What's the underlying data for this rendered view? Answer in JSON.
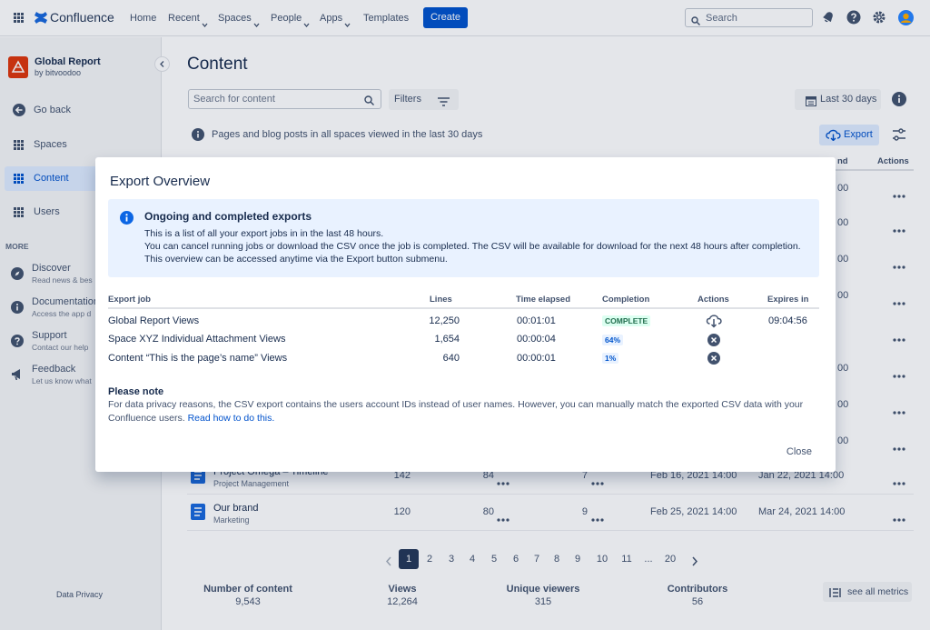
{
  "nav": {
    "brand": "Confluence",
    "items": [
      "Home",
      "Recent",
      "Spaces",
      "People",
      "Apps",
      "Templates"
    ],
    "create": "Create",
    "search": "Search"
  },
  "sidebar": {
    "app_title": "Global Report",
    "app_vendor": "by bitvoodoo",
    "links": [
      "Go back",
      "Spaces",
      "Content",
      "Users"
    ],
    "more_heading": "MORE",
    "more": [
      {
        "title": "Discover",
        "subtitle": "Read news & bes"
      },
      {
        "title": "Documentation",
        "subtitle": "Access the app d"
      },
      {
        "title": "Support",
        "subtitle": "Contact our help"
      },
      {
        "title": "Feedback",
        "subtitle": "Let us know what"
      }
    ],
    "footer": "Data Privacy"
  },
  "content": {
    "title": "Content",
    "search_placeholder": "Search for content",
    "filters": "Filters",
    "date_range": "Last 30 days",
    "info": "Pages and blog posts in all spaces viewed in the last 30 days",
    "export": "Export",
    "header_tail": [
      "nd",
      "Actions"
    ],
    "peek_values": [
      "00",
      "00",
      "00",
      "00",
      "00",
      "00",
      "00"
    ],
    "rows": [
      {
        "title": "Project Omega – Timeline",
        "space": "Project Management",
        "views": "142",
        "unique": "84",
        "contributors": "7",
        "first": "Feb 16, 2021 14:00",
        "last": "Jan 22, 2021 14:00"
      },
      {
        "title": "Our brand",
        "space": "Marketing",
        "views": "120",
        "unique": "80",
        "contributors": "9",
        "first": "Feb 25, 2021 14:00",
        "last": "Mar 24, 2021 14:00"
      }
    ],
    "pagination": [
      "1",
      "2",
      "3",
      "4",
      "5",
      "6",
      "7",
      "8",
      "9",
      "10",
      "11",
      "...",
      "20"
    ],
    "metrics": [
      {
        "label": "Number of content",
        "value": "9,543"
      },
      {
        "label": "Views",
        "value": "12,264"
      },
      {
        "label": "Unique viewers",
        "value": "315"
      },
      {
        "label": "Contributors",
        "value": "56"
      }
    ],
    "see_all": "see all metrics"
  },
  "modal": {
    "title": "Export Overview",
    "notice": {
      "title": "Ongoing and completed exports",
      "lines": [
        "This is a list of all your export jobs in in the last 48 hours.",
        "You can cancel running jobs or download the CSV once the job is completed. The CSV will be available for download for the next 48 hours after completion.",
        "This overview can be accessed anytime via the Export button submenu."
      ]
    },
    "columns": [
      "Export job",
      "Lines",
      "Time elapsed",
      "Completion",
      "Actions",
      "Expires in"
    ],
    "jobs": [
      {
        "name": "Global Report Views",
        "lines": "12,250",
        "elapsed": "00:01:01",
        "completion": "COMPLETE",
        "expires": "09:04:56"
      },
      {
        "name": "Space XYZ Individual Attachment Views",
        "lines": "1,654",
        "elapsed": "00:00:04",
        "completion": "64%"
      },
      {
        "name": "Content “This is the page’s name” Views",
        "lines": "640",
        "elapsed": "00:00:01",
        "completion": "1%"
      }
    ],
    "note_title": "Please note",
    "note_text": "For data privacy reasons, the CSV export contains the users account IDs instead of user names. However, you can manually match the exported CSV data with your Confluence users.",
    "note_link": "Read how to do this.",
    "close": "Close"
  }
}
